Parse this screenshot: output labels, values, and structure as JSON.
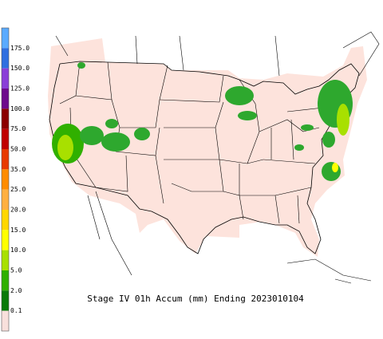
{
  "title": "Stage IV 01h Accum (mm) Ending 2023010104",
  "legend": {
    "labels": [
      "175.0",
      "150.0",
      "125.0",
      "100.0",
      "75.0",
      "50.0",
      "35.0",
      "25.0",
      "20.0",
      "15.0",
      "10.0",
      "5.0",
      "2.0",
      "0.1"
    ],
    "colors": [
      "#5aaaff",
      "#2f6fe0",
      "#8a3fd8",
      "#6e0a8c",
      "#8b0000",
      "#c00000",
      "#e83a00",
      "#ff8c00",
      "#ffb040",
      "#ffd700",
      "#ffff00",
      "#a8e000",
      "#30b000",
      "#0a7a0a",
      "#f8e0dc"
    ]
  }
}
